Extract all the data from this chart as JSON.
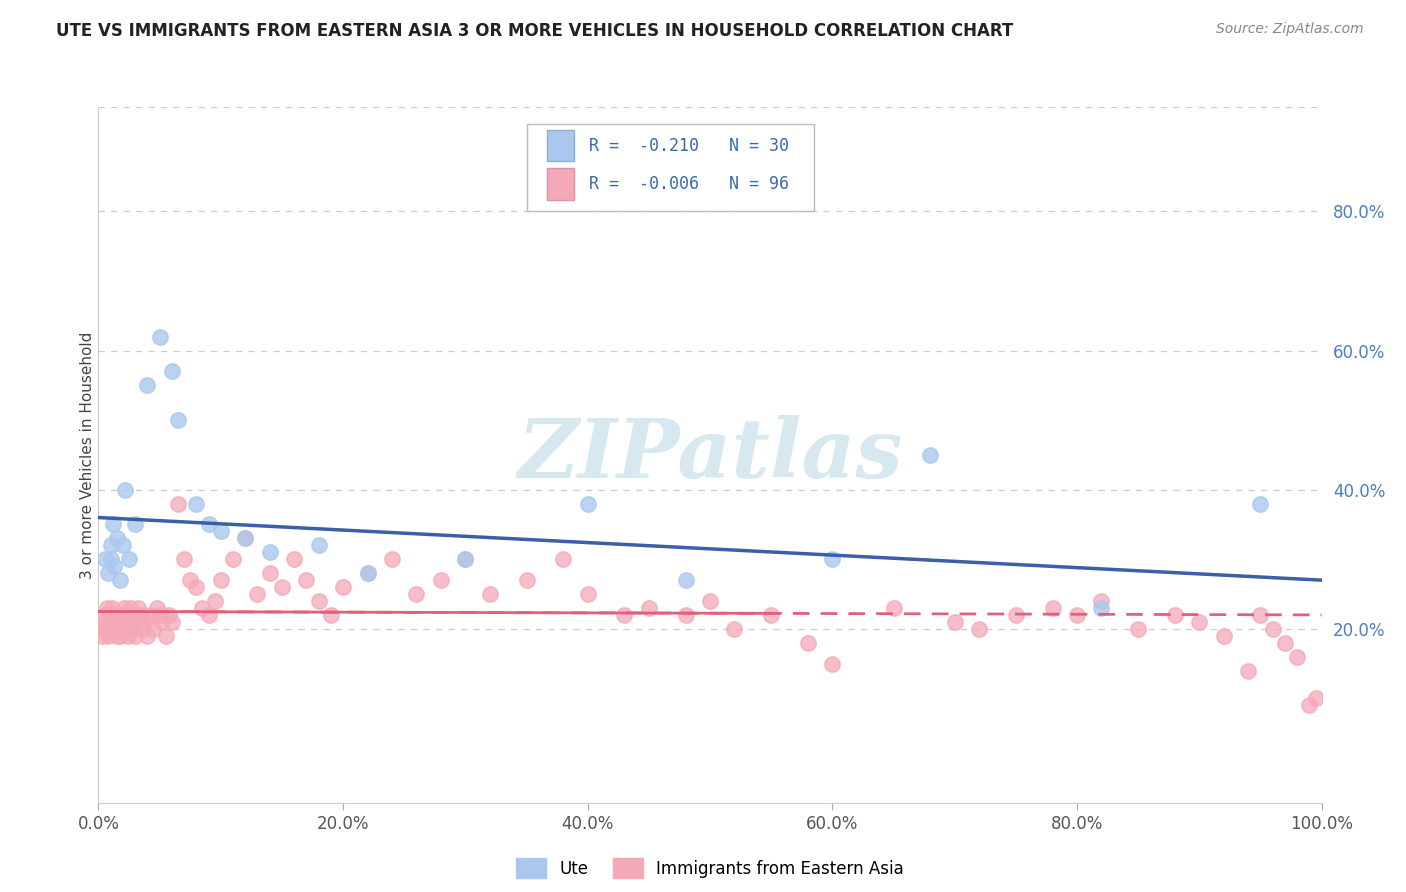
{
  "title": "UTE VS IMMIGRANTS FROM EASTERN ASIA 3 OR MORE VEHICLES IN HOUSEHOLD CORRELATION CHART",
  "source": "Source: ZipAtlas.com",
  "ylabel": "3 or more Vehicles in Household",
  "ytick_labels": [
    "20.0%",
    "40.0%",
    "60.0%",
    "80.0%"
  ],
  "ytick_values": [
    0.2,
    0.4,
    0.6,
    0.8
  ],
  "xtick_labels": [
    "0.0%",
    "20.0%",
    "40.0%",
    "60.0%",
    "80.0%",
    "100.0%"
  ],
  "xtick_values": [
    0.0,
    0.2,
    0.4,
    0.6,
    0.8,
    1.0
  ],
  "legend_labels": [
    "Ute",
    "Immigrants from Eastern Asia"
  ],
  "r_ute": -0.21,
  "n_ute": 30,
  "r_immigrant": -0.006,
  "n_immigrant": 96,
  "blue_scatter_color": "#aac8ee",
  "blue_line_color": "#3a5fa8",
  "pink_scatter_color": "#f4a8b8",
  "pink_line_color": "#e0607a",
  "grid_color": "#cccccc",
  "xlim": [
    0.0,
    1.0
  ],
  "ylim": [
    -0.05,
    0.95
  ],
  "ute_x": [
    0.005,
    0.008,
    0.01,
    0.01,
    0.012,
    0.013,
    0.015,
    0.018,
    0.02,
    0.022,
    0.025,
    0.03,
    0.04,
    0.05,
    0.06,
    0.065,
    0.08,
    0.09,
    0.1,
    0.12,
    0.14,
    0.18,
    0.22,
    0.3,
    0.4,
    0.48,
    0.6,
    0.68,
    0.82,
    0.95
  ],
  "ute_y": [
    0.3,
    0.28,
    0.32,
    0.3,
    0.35,
    0.29,
    0.33,
    0.27,
    0.32,
    0.4,
    0.3,
    0.35,
    0.55,
    0.62,
    0.57,
    0.5,
    0.38,
    0.35,
    0.34,
    0.33,
    0.31,
    0.32,
    0.28,
    0.3,
    0.38,
    0.27,
    0.3,
    0.45,
    0.23,
    0.38
  ],
  "imm_x": [
    0.002,
    0.003,
    0.004,
    0.005,
    0.006,
    0.007,
    0.008,
    0.009,
    0.01,
    0.01,
    0.011,
    0.012,
    0.013,
    0.014,
    0.015,
    0.016,
    0.017,
    0.018,
    0.019,
    0.02,
    0.021,
    0.022,
    0.023,
    0.024,
    0.025,
    0.026,
    0.027,
    0.028,
    0.029,
    0.03,
    0.032,
    0.034,
    0.036,
    0.038,
    0.04,
    0.042,
    0.045,
    0.048,
    0.05,
    0.052,
    0.055,
    0.058,
    0.06,
    0.065,
    0.07,
    0.075,
    0.08,
    0.085,
    0.09,
    0.095,
    0.1,
    0.11,
    0.12,
    0.13,
    0.14,
    0.15,
    0.16,
    0.17,
    0.18,
    0.19,
    0.2,
    0.22,
    0.24,
    0.26,
    0.28,
    0.3,
    0.32,
    0.35,
    0.38,
    0.4,
    0.43,
    0.45,
    0.48,
    0.5,
    0.52,
    0.55,
    0.58,
    0.6,
    0.65,
    0.7,
    0.72,
    0.75,
    0.78,
    0.8,
    0.82,
    0.85,
    0.88,
    0.9,
    0.92,
    0.94,
    0.95,
    0.96,
    0.97,
    0.98,
    0.99,
    0.995
  ],
  "imm_y": [
    0.2,
    0.19,
    0.21,
    0.22,
    0.2,
    0.23,
    0.19,
    0.22,
    0.21,
    0.2,
    0.23,
    0.22,
    0.2,
    0.21,
    0.19,
    0.22,
    0.2,
    0.19,
    0.22,
    0.21,
    0.23,
    0.22,
    0.2,
    0.19,
    0.22,
    0.23,
    0.2,
    0.22,
    0.21,
    0.19,
    0.23,
    0.22,
    0.2,
    0.21,
    0.19,
    0.22,
    0.2,
    0.23,
    0.22,
    0.21,
    0.19,
    0.22,
    0.21,
    0.38,
    0.3,
    0.27,
    0.26,
    0.23,
    0.22,
    0.24,
    0.27,
    0.3,
    0.33,
    0.25,
    0.28,
    0.26,
    0.3,
    0.27,
    0.24,
    0.22,
    0.26,
    0.28,
    0.3,
    0.25,
    0.27,
    0.3,
    0.25,
    0.27,
    0.3,
    0.25,
    0.22,
    0.23,
    0.22,
    0.24,
    0.2,
    0.22,
    0.18,
    0.15,
    0.23,
    0.21,
    0.2,
    0.22,
    0.23,
    0.22,
    0.24,
    0.2,
    0.22,
    0.21,
    0.19,
    0.14,
    0.22,
    0.2,
    0.18,
    0.16,
    0.09,
    0.1
  ]
}
